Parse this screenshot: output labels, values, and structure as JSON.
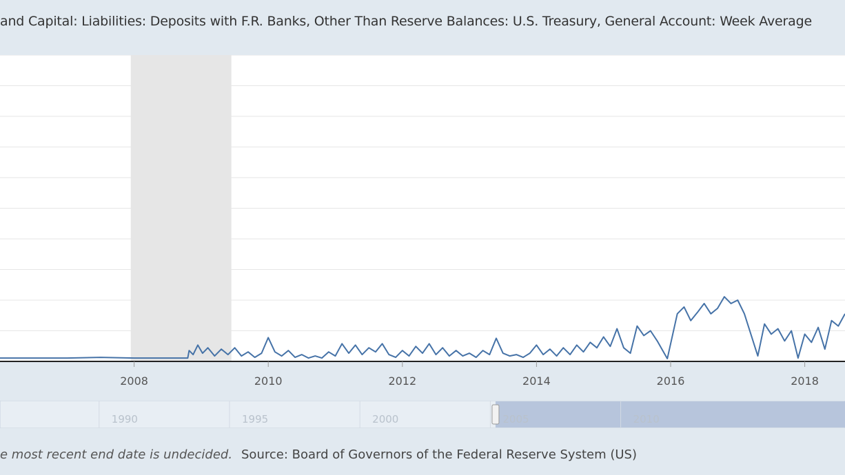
{
  "header": {
    "title": "and Capital: Liabilities: Deposits with F.R. Banks, Other Than Reserve Balances: U.S. Treasury, General Account: Week Average"
  },
  "footer": {
    "note": "e most recent end date is undecided.",
    "source": "Source: Board of Governors of the Federal Reserve System (US)"
  },
  "colors": {
    "series": "#4572a7",
    "recession": "#e6e6e6",
    "grid": "#e6e6e6",
    "background": "#e1e9f0",
    "plot_background": "#ffffff",
    "navigator_selected": "#b7c5dc"
  },
  "navigator": {
    "labels": [
      "1990",
      "1995",
      "2000",
      "2005",
      "2010"
    ],
    "selected_range": [
      2005.2,
      2018.6
    ]
  },
  "chart_data": {
    "type": "line",
    "title": "and Capital: Liabilities: Deposits with F.R. Banks, Other Than Reserve Balances: U.S. Treasury, General Account: Week Average",
    "xlabel": "",
    "ylabel": "",
    "x_ticks": [
      "2008",
      "2010",
      "2012",
      "2014",
      "2016",
      "2018"
    ],
    "xlim": [
      2006.0,
      2018.6
    ],
    "ylim": [
      0,
      450
    ],
    "grid": true,
    "recessions": [
      [
        2007.95,
        2009.45
      ]
    ],
    "series": [
      {
        "values": [
          [
            2006.0,
            5
          ],
          [
            2006.5,
            5
          ],
          [
            2007.0,
            5
          ],
          [
            2007.5,
            6
          ],
          [
            2008.0,
            5
          ],
          [
            2008.8,
            5
          ],
          [
            2008.82,
            16
          ],
          [
            2008.88,
            10
          ],
          [
            2008.95,
            24
          ],
          [
            2009.02,
            12
          ],
          [
            2009.1,
            20
          ],
          [
            2009.2,
            8
          ],
          [
            2009.3,
            18
          ],
          [
            2009.4,
            10
          ],
          [
            2009.5,
            20
          ],
          [
            2009.6,
            8
          ],
          [
            2009.7,
            14
          ],
          [
            2009.8,
            6
          ],
          [
            2009.9,
            12
          ],
          [
            2010.0,
            35
          ],
          [
            2010.1,
            14
          ],
          [
            2010.2,
            8
          ],
          [
            2010.3,
            16
          ],
          [
            2010.4,
            6
          ],
          [
            2010.5,
            10
          ],
          [
            2010.6,
            5
          ],
          [
            2010.7,
            8
          ],
          [
            2010.8,
            5
          ],
          [
            2010.9,
            14
          ],
          [
            2011.0,
            8
          ],
          [
            2011.1,
            26
          ],
          [
            2011.2,
            12
          ],
          [
            2011.3,
            24
          ],
          [
            2011.4,
            10
          ],
          [
            2011.5,
            20
          ],
          [
            2011.6,
            14
          ],
          [
            2011.7,
            26
          ],
          [
            2011.8,
            10
          ],
          [
            2011.9,
            6
          ],
          [
            2012.0,
            16
          ],
          [
            2012.1,
            8
          ],
          [
            2012.2,
            22
          ],
          [
            2012.3,
            12
          ],
          [
            2012.4,
            26
          ],
          [
            2012.5,
            10
          ],
          [
            2012.6,
            20
          ],
          [
            2012.7,
            8
          ],
          [
            2012.8,
            16
          ],
          [
            2012.9,
            8
          ],
          [
            2013.0,
            12
          ],
          [
            2013.1,
            6
          ],
          [
            2013.2,
            16
          ],
          [
            2013.3,
            10
          ],
          [
            2013.4,
            34
          ],
          [
            2013.5,
            12
          ],
          [
            2013.6,
            8
          ],
          [
            2013.7,
            10
          ],
          [
            2013.8,
            6
          ],
          [
            2013.9,
            12
          ],
          [
            2014.0,
            24
          ],
          [
            2014.1,
            10
          ],
          [
            2014.2,
            18
          ],
          [
            2014.3,
            8
          ],
          [
            2014.4,
            20
          ],
          [
            2014.5,
            10
          ],
          [
            2014.6,
            24
          ],
          [
            2014.7,
            14
          ],
          [
            2014.8,
            28
          ],
          [
            2014.9,
            20
          ],
          [
            2015.0,
            36
          ],
          [
            2015.1,
            22
          ],
          [
            2015.2,
            48
          ],
          [
            2015.3,
            20
          ],
          [
            2015.4,
            12
          ],
          [
            2015.5,
            52
          ],
          [
            2015.6,
            38
          ],
          [
            2015.7,
            45
          ],
          [
            2015.8,
            30
          ],
          [
            2015.95,
            4
          ],
          [
            2016.1,
            70
          ],
          [
            2016.2,
            80
          ],
          [
            2016.3,
            60
          ],
          [
            2016.4,
            72
          ],
          [
            2016.5,
            85
          ],
          [
            2016.6,
            70
          ],
          [
            2016.7,
            78
          ],
          [
            2016.8,
            95
          ],
          [
            2016.9,
            85
          ],
          [
            2017.0,
            90
          ],
          [
            2017.1,
            70
          ],
          [
            2017.3,
            8
          ],
          [
            2017.4,
            55
          ],
          [
            2017.5,
            40
          ],
          [
            2017.6,
            48
          ],
          [
            2017.7,
            30
          ],
          [
            2017.8,
            45
          ],
          [
            2017.9,
            5
          ],
          [
            2018.0,
            40
          ],
          [
            2018.1,
            28
          ],
          [
            2018.2,
            50
          ],
          [
            2018.3,
            18
          ],
          [
            2018.4,
            60
          ],
          [
            2018.5,
            52
          ],
          [
            2018.6,
            70
          ]
        ]
      }
    ]
  }
}
